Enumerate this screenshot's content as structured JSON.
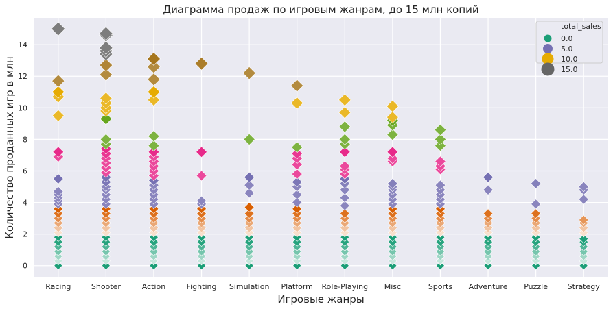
{
  "chart_data": {
    "type": "scatter",
    "title": "Диаграмма продаж по игровым жанрам, до 15 млн копий",
    "xlabel": "Игровые жанры",
    "ylabel": "Количество проданных игр в млн",
    "categories": [
      "Racing",
      "Shooter",
      "Action",
      "Fighting",
      "Simulation",
      "Platform",
      "Role-Playing",
      "Misc",
      "Sports",
      "Adventure",
      "Puzzle",
      "Strategy"
    ],
    "ylim": [
      -0.75,
      15.7
    ],
    "yticks": [
      0,
      2,
      4,
      6,
      8,
      10,
      12,
      14
    ],
    "grid": true,
    "marker": "diamond",
    "hue": "total_sales",
    "size": "total_sales",
    "legend": {
      "title": "total_sales",
      "position": "top-right",
      "entries": [
        {
          "label": "0.0",
          "color": "#1b9e77"
        },
        {
          "label": "5.0",
          "color": "#7570b3"
        },
        {
          "label": "10.0",
          "color": "#e6ab02"
        },
        {
          "label": "15.0",
          "color": "#666666"
        }
      ]
    },
    "palette_bands": [
      {
        "from": 0,
        "to": 1.9,
        "color": "#1b9e77"
      },
      {
        "from": 1.9,
        "to": 3.8,
        "color": "#d95f02"
      },
      {
        "from": 3.8,
        "to": 5.7,
        "color": "#7570b3"
      },
      {
        "from": 5.7,
        "to": 7.5,
        "color": "#e7298a"
      },
      {
        "from": 7.5,
        "to": 9.4,
        "color": "#66a61e"
      },
      {
        "from": 9.4,
        "to": 11.3,
        "color": "#e6ab02"
      },
      {
        "from": 11.3,
        "to": 13.2,
        "color": "#a6761d"
      },
      {
        "from": 13.2,
        "to": 16,
        "color": "#666666"
      }
    ],
    "series": [
      {
        "name": "Racing",
        "values": [
          0,
          0.3,
          0.6,
          0.9,
          1.2,
          1.5,
          1.8,
          2.1,
          2.4,
          2.7,
          3.0,
          3.3,
          3.6,
          3.9,
          4.1,
          4.3,
          4.5,
          4.7,
          5.5,
          6.9,
          7.2,
          9.5,
          10.7,
          11.0,
          11.7,
          15.0
        ]
      },
      {
        "name": "Shooter",
        "values": [
          0,
          0.3,
          0.6,
          0.9,
          1.2,
          1.5,
          1.8,
          2.1,
          2.4,
          2.7,
          3.0,
          3.3,
          3.6,
          3.9,
          4.2,
          4.5,
          4.8,
          5.0,
          5.3,
          5.6,
          5.9,
          6.2,
          6.5,
          6.8,
          7.1,
          7.4,
          7.7,
          8.0,
          9.3,
          9.8,
          10.0,
          10.3,
          10.6,
          12.1,
          12.7,
          13.4,
          13.6,
          13.8,
          14.6,
          14.7
        ]
      },
      {
        "name": "Action",
        "values": [
          0,
          0.3,
          0.6,
          0.9,
          1.2,
          1.5,
          1.8,
          2.1,
          2.4,
          2.7,
          3.0,
          3.3,
          3.6,
          3.9,
          4.2,
          4.5,
          4.8,
          5.1,
          5.4,
          5.7,
          6.0,
          6.3,
          6.6,
          6.9,
          7.2,
          7.6,
          8.2,
          10.5,
          11.0,
          11.8,
          12.6,
          13.1
        ]
      },
      {
        "name": "Fighting",
        "values": [
          0,
          0.3,
          0.6,
          0.9,
          1.2,
          1.5,
          1.8,
          2.1,
          2.4,
          2.7,
          3.0,
          3.3,
          3.6,
          3.9,
          4.1,
          5.7,
          7.2,
          12.8
        ]
      },
      {
        "name": "Simulation",
        "values": [
          0,
          0.3,
          0.6,
          0.9,
          1.2,
          1.5,
          1.8,
          2.1,
          2.4,
          2.7,
          3.0,
          3.3,
          3.7,
          4.6,
          5.1,
          5.6,
          8.0,
          12.2
        ]
      },
      {
        "name": "Platform",
        "values": [
          0,
          0.3,
          0.6,
          0.9,
          1.2,
          1.5,
          1.8,
          2.1,
          2.4,
          2.7,
          3.0,
          3.3,
          3.6,
          4.0,
          4.5,
          5.0,
          5.3,
          5.8,
          6.4,
          6.8,
          7.1,
          7.5,
          10.3,
          11.4
        ]
      },
      {
        "name": "Role-Playing",
        "values": [
          0,
          0.3,
          0.6,
          0.9,
          1.2,
          1.5,
          1.8,
          2.1,
          2.4,
          2.7,
          3.0,
          3.3,
          3.8,
          4.3,
          4.8,
          5.2,
          5.5,
          5.8,
          6.1,
          6.3,
          7.2,
          7.7,
          8.0,
          8.8,
          9.7,
          10.5
        ]
      },
      {
        "name": "Misc",
        "values": [
          0,
          0.3,
          0.6,
          0.9,
          1.2,
          1.5,
          1.8,
          2.1,
          2.4,
          2.7,
          3.0,
          3.3,
          3.6,
          3.9,
          4.2,
          4.5,
          4.8,
          5.0,
          5.2,
          6.6,
          6.8,
          7.2,
          8.3,
          8.9,
          9.2,
          9.4,
          10.1
        ]
      },
      {
        "name": "Sports",
        "values": [
          0,
          0.3,
          0.6,
          0.9,
          1.2,
          1.5,
          1.8,
          2.1,
          2.4,
          2.7,
          3.0,
          3.3,
          3.6,
          3.9,
          4.2,
          4.5,
          4.8,
          5.1,
          6.1,
          6.3,
          6.6,
          7.6,
          8.0,
          8.6
        ]
      },
      {
        "name": "Adventure",
        "values": [
          0,
          0.3,
          0.6,
          0.9,
          1.2,
          1.5,
          1.8,
          2.1,
          2.4,
          2.7,
          3.0,
          3.3,
          4.8,
          5.6
        ]
      },
      {
        "name": "Puzzle",
        "values": [
          0,
          0.3,
          0.6,
          0.9,
          1.2,
          1.5,
          1.8,
          2.1,
          2.4,
          2.7,
          3.0,
          3.3,
          3.9,
          5.2
        ]
      },
      {
        "name": "Strategy",
        "values": [
          0,
          0.3,
          0.6,
          0.9,
          1.2,
          1.5,
          1.7,
          2.1,
          2.4,
          2.7,
          2.9,
          4.2,
          4.8,
          5.0
        ]
      }
    ]
  }
}
